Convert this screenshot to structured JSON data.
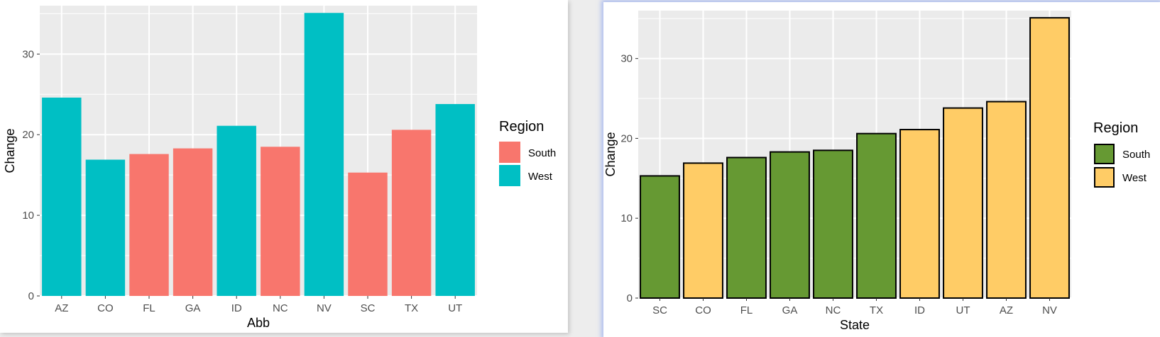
{
  "chart_data": [
    {
      "type": "bar",
      "xlabel": "Abb",
      "ylabel": "Change",
      "ylim": [
        0,
        36
      ],
      "yticks": [
        0,
        10,
        20,
        30
      ],
      "grid": true,
      "legend": {
        "title": "Region",
        "position": "right",
        "entries": [
          {
            "label": "South",
            "color": "#F8766D"
          },
          {
            "label": "West",
            "color": "#00BFC4"
          }
        ]
      },
      "bar_outline": "none",
      "categories": [
        "AZ",
        "CO",
        "FL",
        "GA",
        "ID",
        "NC",
        "NV",
        "SC",
        "TX",
        "UT"
      ],
      "values": [
        24.6,
        16.9,
        17.6,
        18.3,
        21.1,
        18.5,
        35.1,
        15.3,
        20.6,
        23.8
      ],
      "groups": [
        "West",
        "West",
        "South",
        "South",
        "West",
        "South",
        "West",
        "South",
        "South",
        "West"
      ]
    },
    {
      "type": "bar",
      "xlabel": "State",
      "ylabel": "Change",
      "ylim": [
        0,
        36
      ],
      "yticks": [
        0,
        10,
        20,
        30
      ],
      "grid": true,
      "legend": {
        "title": "Region",
        "position": "right",
        "entries": [
          {
            "label": "South",
            "color": "#669933"
          },
          {
            "label": "West",
            "color": "#FFCC66"
          }
        ]
      },
      "bar_outline": "#000000",
      "categories": [
        "SC",
        "CO",
        "FL",
        "GA",
        "NC",
        "TX",
        "ID",
        "UT",
        "AZ",
        "NV"
      ],
      "values": [
        15.3,
        16.9,
        17.6,
        18.3,
        18.5,
        20.6,
        21.1,
        23.8,
        24.6,
        35.1
      ],
      "groups": [
        "South",
        "West",
        "South",
        "South",
        "South",
        "South",
        "West",
        "West",
        "West",
        "West"
      ]
    }
  ]
}
